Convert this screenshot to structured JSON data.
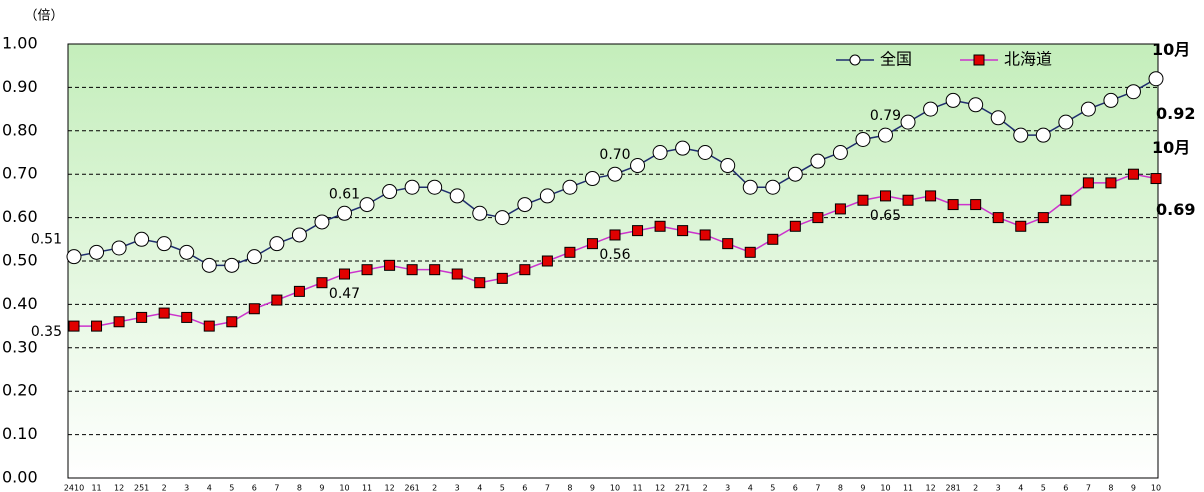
{
  "chart_data": {
    "type": "line",
    "unit_label": "（倍）",
    "categories": [
      "2410",
      "11",
      "12",
      "251",
      "2",
      "3",
      "4",
      "5",
      "6",
      "7",
      "8",
      "9",
      "10",
      "11",
      "12",
      "261",
      "2",
      "3",
      "4",
      "5",
      "6",
      "7",
      "8",
      "9",
      "10",
      "11",
      "12",
      "271",
      "2",
      "3",
      "4",
      "5",
      "6",
      "7",
      "8",
      "9",
      "10",
      "11",
      "12",
      "281",
      "2",
      "3",
      "4",
      "5",
      "6",
      "7",
      "8",
      "9",
      "10"
    ],
    "series": [
      {
        "name": "全国",
        "color": "#1f2d6e",
        "marker": "circle",
        "marker_color": "#ffffff",
        "end_label": "10月",
        "values": [
          0.51,
          0.52,
          0.53,
          0.55,
          0.54,
          0.52,
          0.49,
          0.49,
          0.51,
          0.54,
          0.56,
          0.59,
          0.61,
          0.63,
          0.66,
          0.67,
          0.67,
          0.65,
          0.61,
          0.6,
          0.63,
          0.65,
          0.67,
          0.69,
          0.7,
          0.72,
          0.75,
          0.76,
          0.75,
          0.72,
          0.67,
          0.67,
          0.7,
          0.73,
          0.75,
          0.78,
          0.79,
          0.82,
          0.85,
          0.87,
          0.86,
          0.83,
          0.79,
          0.79,
          0.82,
          0.85,
          0.87,
          0.89,
          0.92
        ],
        "value_labels": [
          "0.51",
          null,
          null,
          null,
          null,
          null,
          null,
          null,
          null,
          null,
          null,
          null,
          "0.61",
          null,
          null,
          null,
          null,
          null,
          null,
          null,
          null,
          null,
          null,
          null,
          "0.70",
          null,
          null,
          null,
          null,
          null,
          null,
          null,
          null,
          null,
          null,
          null,
          "0.79",
          null,
          null,
          null,
          null,
          null,
          null,
          null,
          null,
          null,
          null,
          null,
          "0.92"
        ]
      },
      {
        "name": "北海道",
        "color": "#cc33cc",
        "marker": "square",
        "marker_color": "#e00000",
        "end_label": "10月",
        "values": [
          0.35,
          0.35,
          0.36,
          0.37,
          0.38,
          0.37,
          0.35,
          0.36,
          0.39,
          0.41,
          0.43,
          0.45,
          0.47,
          0.48,
          0.49,
          0.48,
          0.48,
          0.47,
          0.45,
          0.46,
          0.48,
          0.5,
          0.52,
          0.54,
          0.56,
          0.57,
          0.58,
          0.57,
          0.56,
          0.54,
          0.52,
          0.55,
          0.58,
          0.6,
          0.62,
          0.64,
          0.65,
          0.64,
          0.65,
          0.63,
          0.63,
          0.6,
          0.58,
          0.6,
          0.64,
          0.68,
          0.68,
          0.7,
          0.69
        ],
        "value_labels": [
          "0.35",
          null,
          null,
          null,
          null,
          null,
          null,
          null,
          null,
          null,
          null,
          null,
          "0.47",
          null,
          null,
          null,
          null,
          null,
          null,
          null,
          null,
          null,
          null,
          null,
          "0.56",
          null,
          null,
          null,
          null,
          null,
          null,
          null,
          null,
          null,
          null,
          null,
          "0.65",
          null,
          null,
          null,
          null,
          null,
          null,
          null,
          null,
          null,
          null,
          null,
          "0.69"
        ]
      }
    ],
    "ylim": [
      0,
      1
    ],
    "yticks": [
      {
        "value": 0,
        "label": "0.00"
      },
      {
        "value": 0.1,
        "label": "0.10"
      },
      {
        "value": 0.2,
        "label": "0.20"
      },
      {
        "value": 0.3,
        "label": "0.30"
      },
      {
        "value": 0.4,
        "label": "0.40"
      },
      {
        "value": 0.5,
        "label": "0.50"
      },
      {
        "value": 0.6,
        "label": "0.60"
      },
      {
        "value": 0.7,
        "label": "0.70"
      },
      {
        "value": 0.8,
        "label": "0.80"
      },
      {
        "value": 0.9,
        "label": "0.90"
      },
      {
        "value": 1,
        "label": "1.00"
      }
    ],
    "grid": true,
    "legend": "top-right"
  }
}
